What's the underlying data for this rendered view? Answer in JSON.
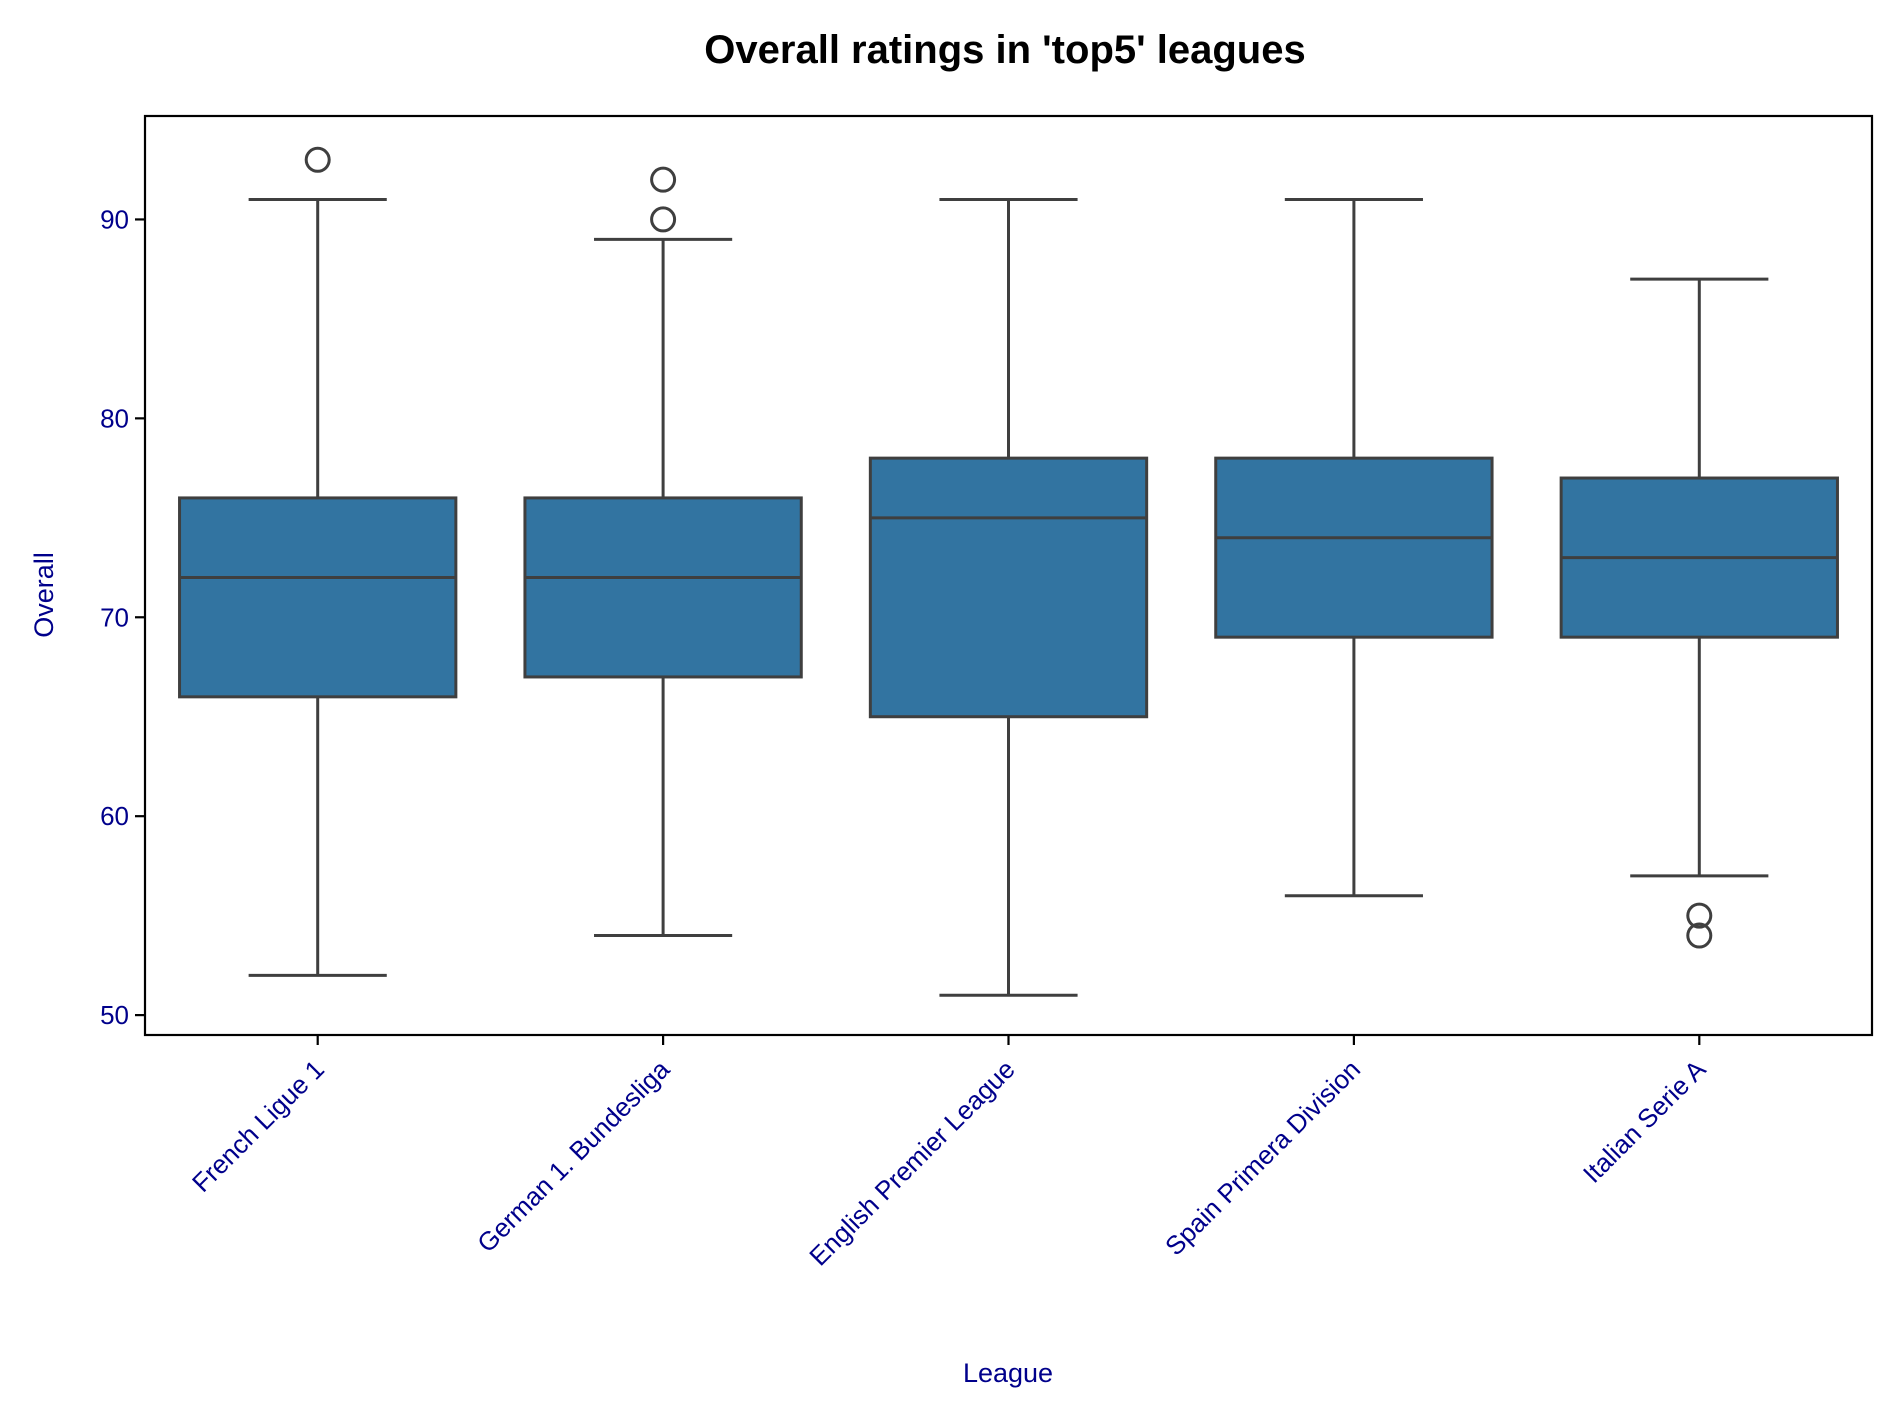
{
  "chart_data": {
    "type": "box",
    "title": "Overall ratings in 'top5' leagues",
    "xlabel": "League",
    "ylabel": "Overall",
    "ylim": [
      49,
      95.2
    ],
    "yticks": [
      50,
      60,
      70,
      80,
      90
    ],
    "grid": false,
    "legend": "none",
    "categories": [
      "French Ligue 1",
      "German 1. Bundesliga",
      "English Premier League",
      "Spain Primera Division",
      "Italian Serie A"
    ],
    "boxes": [
      {
        "category": "French Ligue 1",
        "whisker_low": 52,
        "q1": 66,
        "median": 72,
        "q3": 76,
        "whisker_high": 91,
        "outliers": [
          93
        ]
      },
      {
        "category": "German 1. Bundesliga",
        "whisker_low": 54,
        "q1": 67,
        "median": 72,
        "q3": 76,
        "whisker_high": 89,
        "outliers": [
          90,
          92
        ]
      },
      {
        "category": "English Premier League",
        "whisker_low": 51,
        "q1": 65,
        "median": 75,
        "q3": 78,
        "whisker_high": 91,
        "outliers": []
      },
      {
        "category": "Spain Primera Division",
        "whisker_low": 56,
        "q1": 69,
        "median": 74,
        "q3": 78,
        "whisker_high": 91,
        "outliers": []
      },
      {
        "category": "Italian Serie A",
        "whisker_low": 57,
        "q1": 69,
        "median": 73,
        "q3": 77,
        "whisker_high": 87,
        "outliers": [
          54,
          55
        ]
      }
    ],
    "colors": {
      "box_fill": "#3274a1",
      "box_line": "#3f3f3f",
      "label_color": "#00008b",
      "axis_color": "#000000"
    }
  }
}
